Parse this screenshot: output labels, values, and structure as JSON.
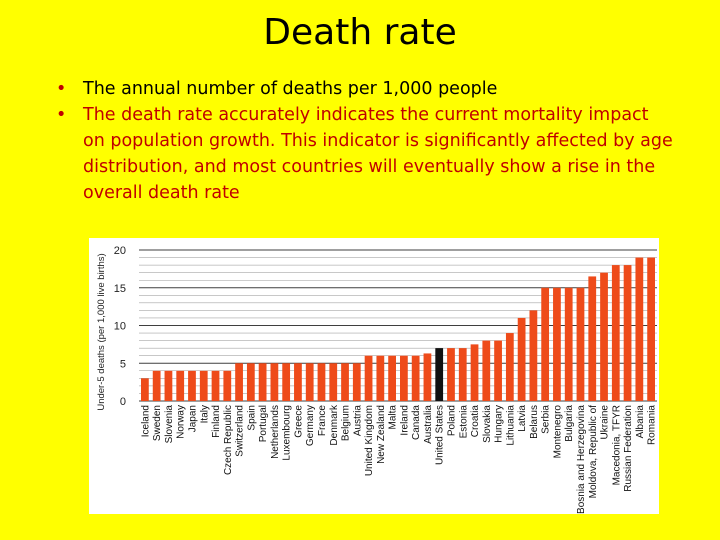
{
  "slide": {
    "title": "Death rate",
    "bullets": [
      "The annual number of deaths per 1,000 people",
      "The death rate accurately indicates the current mortality impact on population growth. This indicator is significantly affected by age distribution, and most countries will eventually show a rise in the overall death rate"
    ]
  },
  "colors": {
    "background": "#ffff00",
    "bar": "#ee4b1a",
    "highlight_bar": "#111111",
    "bullet_highlight_text": "#c00000"
  },
  "chart_data": {
    "type": "bar",
    "title": "",
    "xlabel": "",
    "ylabel": "Under-5 deaths (per 1,000 live births)",
    "ylim": [
      0,
      20
    ],
    "yticks": [
      0,
      5,
      10,
      15,
      20
    ],
    "grid": true,
    "legend": "none",
    "highlight": "United States",
    "categories": [
      "Iceland",
      "Sweden",
      "Slovenia",
      "Norway",
      "Japan",
      "Italy",
      "Finland",
      "Czech Republic",
      "Switzerland",
      "Spain",
      "Portugal",
      "Netherlands",
      "Luxembourg",
      "Greece",
      "Germany",
      "France",
      "Denmark",
      "Belgium",
      "Austria",
      "United Kingdom",
      "New Zealand",
      "Malta",
      "Ireland",
      "Canada",
      "Australia",
      "United States",
      "Poland",
      "Estonia",
      "Croatia",
      "Slovakia",
      "Hungary",
      "Lithuania",
      "Latvia",
      "Belarus",
      "Serbia",
      "Montenegro",
      "Bulgaria",
      "Bosnia and Herzegovina",
      "Moldova, Republic of",
      "Ukraine",
      "Macedonia, TFYR",
      "Russian Federation",
      "Albania",
      "Romania"
    ],
    "values": [
      3,
      4,
      4,
      4,
      4,
      4,
      4,
      4,
      5,
      5,
      5,
      5,
      5,
      5,
      5,
      5,
      5,
      5,
      5,
      6,
      6,
      6,
      6,
      6,
      6.3,
      7,
      7,
      7,
      7.5,
      8,
      8,
      9,
      11,
      12,
      15,
      15,
      15,
      15,
      16.5,
      17,
      18,
      18,
      19,
      19
    ]
  }
}
